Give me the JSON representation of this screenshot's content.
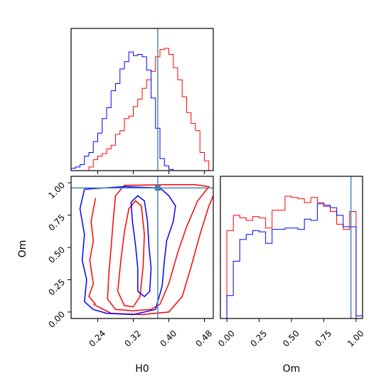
{
  "chart_data": {
    "type": "corner",
    "parameters": [
      "H0",
      "Om"
    ],
    "colors": {
      "red": "#ff0000",
      "blue": "#0000ff",
      "truth": "#4682b4"
    },
    "truth": {
      "H0": 0.375,
      "Om": 0.96
    },
    "ranges": {
      "H0": [
        0.18,
        0.5
      ],
      "Om": [
        -0.05,
        1.05
      ]
    },
    "ticks": {
      "H0": {
        "values": [
          0.24,
          0.32,
          0.4,
          0.48
        ],
        "labels": [
          "0.24",
          "0.32",
          "0.40",
          "0.48"
        ]
      },
      "Om": {
        "values": [
          0.0,
          0.25,
          0.5,
          0.75,
          1.0
        ],
        "labels": [
          "0.00",
          "0.25",
          "0.50",
          "0.75",
          "1.00"
        ]
      }
    },
    "axis_labels": {
      "x_left": "H0",
      "x_right": "Om",
      "y_left": "Om"
    },
    "histograms": {
      "H0": {
        "edges": [
          0.18,
          0.19,
          0.2,
          0.21,
          0.22,
          0.23,
          0.24,
          0.25,
          0.26,
          0.27,
          0.28,
          0.29,
          0.3,
          0.31,
          0.32,
          0.33,
          0.34,
          0.35,
          0.36,
          0.37,
          0.38,
          0.39,
          0.4,
          0.41,
          0.42,
          0.43,
          0.44,
          0.45,
          0.46,
          0.47,
          0.48,
          0.49,
          0.5
        ],
        "series": [
          {
            "color": "red",
            "counts": [
              0,
              0,
              0,
              0,
              3,
              9,
              12,
              14,
              18,
              21,
              30,
              33,
              43,
              45,
              53,
              59,
              68,
              75,
              82,
              94,
              100,
              101,
              96,
              85,
              75,
              61,
              48,
              39,
              33,
              15,
              8,
              0
            ]
          },
          {
            "color": "blue",
            "counts": [
              2,
              3,
              5,
              12,
              15,
              24,
              31,
              43,
              52,
              66,
              72,
              84,
              90,
              98,
              95,
              96,
              94,
              83,
              60,
              35,
              10,
              4,
              1,
              0,
              0,
              0,
              0,
              0,
              0,
              0,
              0,
              0
            ]
          }
        ]
      },
      "Om": {
        "edges": [
          -0.05,
          0.0,
          0.05,
          0.1,
          0.15,
          0.2,
          0.25,
          0.3,
          0.35,
          0.4,
          0.45,
          0.5,
          0.55,
          0.6,
          0.65,
          0.7,
          0.75,
          0.8,
          0.85,
          0.9,
          0.95,
          1.0,
          1.05
        ],
        "series": [
          {
            "color": "red",
            "counts": [
              0,
              69,
              81,
              79,
              77,
              80,
              79,
              71,
              85,
              85,
              96,
              95,
              94,
              91,
              95,
              91,
              88,
              84,
              74,
              70,
              84,
              0
            ]
          },
          {
            "color": "blue",
            "counts": [
              0,
              18,
              45,
              62,
              66,
              69,
              68,
              59,
              70,
              70,
              71,
              71,
              70,
              78,
              77,
              90,
              89,
              87,
              81,
              72,
              72,
              2
            ]
          }
        ]
      }
    },
    "contours": [
      {
        "color": "red",
        "level": "inner",
        "points": [
          [
            0.285,
            0.16
          ],
          [
            0.3,
            0.05
          ],
          [
            0.32,
            0.04
          ],
          [
            0.335,
            0.12
          ],
          [
            0.342,
            0.35
          ],
          [
            0.345,
            0.6
          ],
          [
            0.338,
            0.82
          ],
          [
            0.325,
            0.86
          ],
          [
            0.31,
            0.8
          ],
          [
            0.3,
            0.62
          ],
          [
            0.292,
            0.4
          ],
          [
            0.285,
            0.16
          ]
        ]
      },
      {
        "color": "red",
        "level": "outer",
        "points": [
          [
            0.262,
            0.1
          ],
          [
            0.28,
            0.02
          ],
          [
            0.32,
            0.01
          ],
          [
            0.36,
            0.02
          ],
          [
            0.38,
            0.06
          ],
          [
            0.4,
            0.22
          ],
          [
            0.42,
            0.46
          ],
          [
            0.44,
            0.66
          ],
          [
            0.465,
            0.86
          ],
          [
            0.49,
            0.97
          ],
          [
            0.46,
            0.985
          ],
          [
            0.4,
            0.985
          ],
          [
            0.3,
            0.98
          ],
          [
            0.28,
            0.9
          ],
          [
            0.275,
            0.72
          ],
          [
            0.27,
            0.5
          ],
          [
            0.265,
            0.3
          ],
          [
            0.262,
            0.1
          ]
        ]
      },
      {
        "color": "red",
        "level": "outermost",
        "points": [
          [
            0.23,
            0.06
          ],
          [
            0.27,
            -0.01
          ],
          [
            0.34,
            -0.02
          ],
          [
            0.4,
            0.0
          ],
          [
            0.43,
            0.12
          ],
          [
            0.45,
            0.35
          ],
          [
            0.47,
            0.6
          ],
          [
            0.49,
            0.82
          ],
          [
            0.5,
            0.9
          ]
        ]
      },
      {
        "color": "red",
        "level": "left-wiggle",
        "points": [
          [
            0.235,
            0.88
          ],
          [
            0.225,
            0.7
          ],
          [
            0.23,
            0.55
          ],
          [
            0.222,
            0.4
          ],
          [
            0.23,
            0.22
          ],
          [
            0.22,
            0.12
          ],
          [
            0.235,
            0.06
          ]
        ]
      },
      {
        "color": "blue",
        "level": "inner",
        "points": [
          [
            0.33,
            0.16
          ],
          [
            0.33,
            0.34
          ],
          [
            0.325,
            0.52
          ],
          [
            0.318,
            0.7
          ],
          [
            0.315,
            0.85
          ],
          [
            0.33,
            0.9
          ],
          [
            0.345,
            0.86
          ],
          [
            0.352,
            0.7
          ],
          [
            0.355,
            0.52
          ],
          [
            0.36,
            0.34
          ],
          [
            0.357,
            0.16
          ],
          [
            0.345,
            0.12
          ],
          [
            0.33,
            0.16
          ]
        ]
      },
      {
        "color": "blue",
        "level": "outer",
        "points": [
          [
            0.21,
            0.95
          ],
          [
            0.2,
            0.8
          ],
          [
            0.21,
            0.6
          ],
          [
            0.205,
            0.4
          ],
          [
            0.215,
            0.25
          ],
          [
            0.21,
            0.08
          ],
          [
            0.23,
            0.02
          ],
          [
            0.26,
            -0.01
          ],
          [
            0.32,
            -0.02
          ],
          [
            0.37,
            0.02
          ],
          [
            0.385,
            0.2
          ],
          [
            0.39,
            0.4
          ],
          [
            0.395,
            0.55
          ],
          [
            0.41,
            0.7
          ],
          [
            0.415,
            0.82
          ],
          [
            0.4,
            0.9
          ],
          [
            0.38,
            0.96
          ],
          [
            0.3,
            0.97
          ],
          [
            0.21,
            0.95
          ]
        ]
      }
    ]
  }
}
